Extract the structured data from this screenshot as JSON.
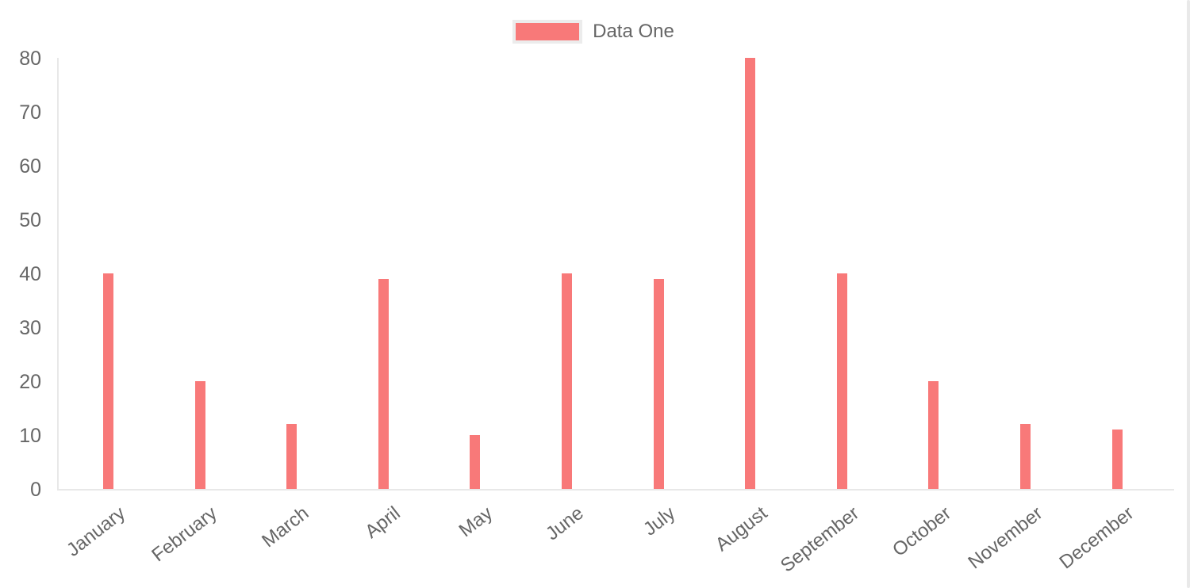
{
  "page": {
    "background": "#ffffff"
  },
  "legend": {
    "label": "Data One"
  },
  "colors": {
    "bar": "#f87979",
    "legend_swatch": "#f87979",
    "legend_swatch_border": "#ececec",
    "axis_line": "#e8e8e8",
    "tick_label": "#666666",
    "scrollbar": "#e9e9e9"
  },
  "chart_data": {
    "type": "bar",
    "title": "",
    "xlabel": "",
    "ylabel": "",
    "categories": [
      "January",
      "February",
      "March",
      "April",
      "May",
      "June",
      "July",
      "August",
      "September",
      "October",
      "November",
      "December"
    ],
    "series": [
      {
        "name": "Data One",
        "color": "#f87979",
        "values": [
          40,
          20,
          12,
          39,
          10,
          40,
          39,
          80,
          40,
          20,
          12,
          11
        ]
      }
    ],
    "y_ticks": [
      0,
      10,
      20,
      30,
      40,
      50,
      60,
      70,
      80
    ],
    "ylim": [
      0,
      80
    ],
    "grid": "off",
    "legend_position": "top-center",
    "x_tick_rotation_deg": -38
  }
}
